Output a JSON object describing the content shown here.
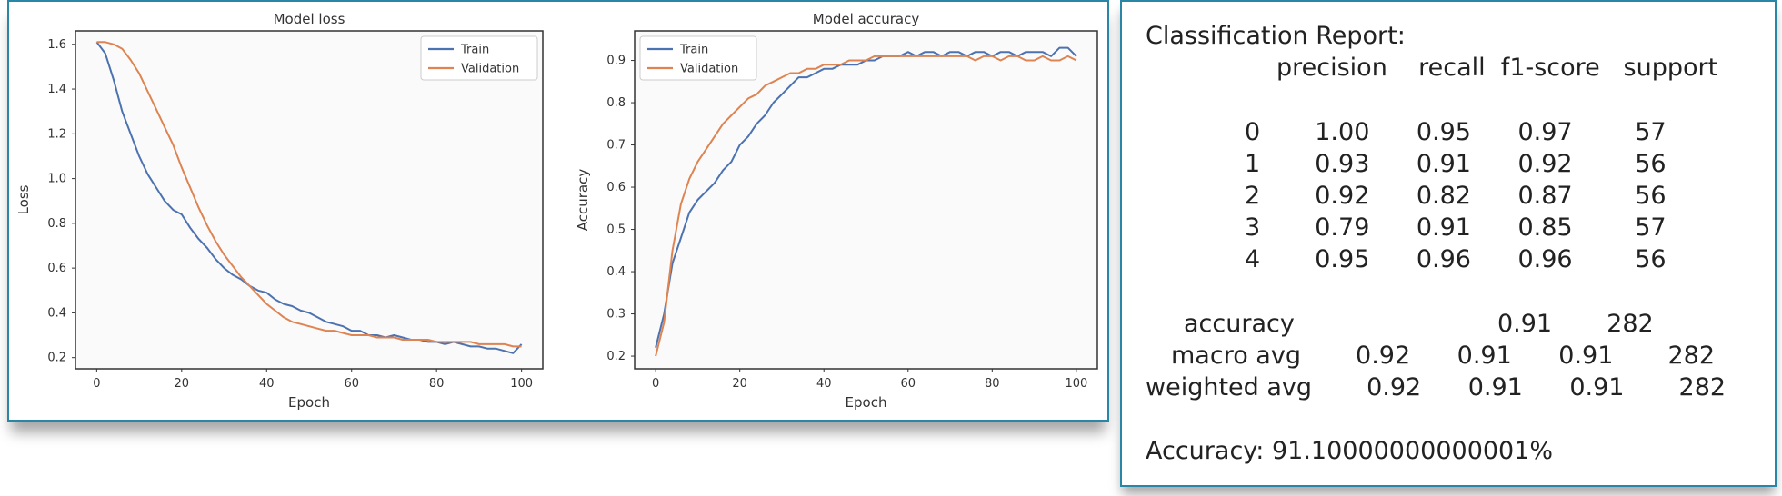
{
  "colors": {
    "train": "#4c72b0",
    "validation": "#dd8452",
    "frame": "#2a86a6",
    "plot_bg": "#fafafa"
  },
  "chart_data": [
    {
      "type": "line",
      "title": "Model loss",
      "xlabel": "Epoch",
      "ylabel": "Loss",
      "xlim": [
        -5,
        105
      ],
      "ylim": [
        0.15,
        1.66
      ],
      "xticks": [
        0,
        20,
        40,
        60,
        80,
        100
      ],
      "yticks": [
        0.2,
        0.4,
        0.6,
        0.8,
        1.0,
        1.2,
        1.4,
        1.6
      ],
      "legend_placement": "upper-right",
      "series": [
        {
          "name": "Train",
          "x": [
            0,
            2,
            4,
            6,
            8,
            10,
            12,
            14,
            16,
            18,
            20,
            22,
            24,
            26,
            28,
            30,
            32,
            34,
            36,
            38,
            40,
            42,
            44,
            46,
            48,
            50,
            52,
            54,
            56,
            58,
            60,
            62,
            64,
            66,
            68,
            70,
            72,
            74,
            76,
            78,
            80,
            82,
            84,
            86,
            88,
            90,
            92,
            94,
            96,
            98,
            100
          ],
          "values": [
            1.61,
            1.56,
            1.44,
            1.3,
            1.2,
            1.1,
            1.02,
            0.96,
            0.9,
            0.86,
            0.84,
            0.78,
            0.73,
            0.69,
            0.64,
            0.6,
            0.57,
            0.55,
            0.52,
            0.5,
            0.49,
            0.46,
            0.44,
            0.43,
            0.41,
            0.4,
            0.38,
            0.36,
            0.35,
            0.34,
            0.32,
            0.32,
            0.3,
            0.3,
            0.29,
            0.3,
            0.29,
            0.28,
            0.28,
            0.27,
            0.27,
            0.26,
            0.27,
            0.26,
            0.25,
            0.25,
            0.24,
            0.24,
            0.23,
            0.22,
            0.26
          ]
        },
        {
          "name": "Validation",
          "x": [
            0,
            2,
            4,
            6,
            8,
            10,
            12,
            14,
            16,
            18,
            20,
            22,
            24,
            26,
            28,
            30,
            32,
            34,
            36,
            38,
            40,
            42,
            44,
            46,
            48,
            50,
            52,
            54,
            56,
            58,
            60,
            62,
            64,
            66,
            68,
            70,
            72,
            74,
            76,
            78,
            80,
            82,
            84,
            86,
            88,
            90,
            92,
            94,
            96,
            98,
            100
          ],
          "values": [
            1.61,
            1.61,
            1.6,
            1.58,
            1.53,
            1.47,
            1.39,
            1.31,
            1.23,
            1.15,
            1.05,
            0.96,
            0.87,
            0.79,
            0.72,
            0.66,
            0.61,
            0.56,
            0.52,
            0.48,
            0.44,
            0.41,
            0.38,
            0.36,
            0.35,
            0.34,
            0.33,
            0.32,
            0.32,
            0.31,
            0.3,
            0.3,
            0.3,
            0.29,
            0.29,
            0.29,
            0.28,
            0.28,
            0.28,
            0.28,
            0.27,
            0.27,
            0.27,
            0.27,
            0.27,
            0.26,
            0.26,
            0.26,
            0.26,
            0.25,
            0.25
          ]
        }
      ]
    },
    {
      "type": "line",
      "title": "Model accuracy",
      "xlabel": "Epoch",
      "ylabel": "Accuracy",
      "xlim": [
        -5,
        105
      ],
      "ylim": [
        0.17,
        0.97
      ],
      "xticks": [
        0,
        20,
        40,
        60,
        80,
        100
      ],
      "yticks": [
        0.2,
        0.3,
        0.4,
        0.5,
        0.6,
        0.7,
        0.8,
        0.9
      ],
      "legend_placement": "upper-left",
      "series": [
        {
          "name": "Train",
          "x": [
            0,
            2,
            4,
            6,
            8,
            10,
            12,
            14,
            16,
            18,
            20,
            22,
            24,
            26,
            28,
            30,
            32,
            34,
            36,
            38,
            40,
            42,
            44,
            46,
            48,
            50,
            52,
            54,
            56,
            58,
            60,
            62,
            64,
            66,
            68,
            70,
            72,
            74,
            76,
            78,
            80,
            82,
            84,
            86,
            88,
            90,
            92,
            94,
            96,
            98,
            100
          ],
          "values": [
            0.22,
            0.3,
            0.42,
            0.48,
            0.54,
            0.57,
            0.59,
            0.61,
            0.64,
            0.66,
            0.7,
            0.72,
            0.75,
            0.77,
            0.8,
            0.82,
            0.84,
            0.86,
            0.86,
            0.87,
            0.88,
            0.88,
            0.89,
            0.89,
            0.89,
            0.9,
            0.9,
            0.91,
            0.91,
            0.91,
            0.92,
            0.91,
            0.92,
            0.92,
            0.91,
            0.92,
            0.92,
            0.91,
            0.92,
            0.92,
            0.91,
            0.92,
            0.92,
            0.91,
            0.92,
            0.92,
            0.92,
            0.91,
            0.93,
            0.93,
            0.91
          ]
        },
        {
          "name": "Validation",
          "x": [
            0,
            2,
            4,
            6,
            8,
            10,
            12,
            14,
            16,
            18,
            20,
            22,
            24,
            26,
            28,
            30,
            32,
            34,
            36,
            38,
            40,
            42,
            44,
            46,
            48,
            50,
            52,
            54,
            56,
            58,
            60,
            62,
            64,
            66,
            68,
            70,
            72,
            74,
            76,
            78,
            80,
            82,
            84,
            86,
            88,
            90,
            92,
            94,
            96,
            98,
            100
          ],
          "values": [
            0.2,
            0.28,
            0.45,
            0.56,
            0.62,
            0.66,
            0.69,
            0.72,
            0.75,
            0.77,
            0.79,
            0.81,
            0.82,
            0.84,
            0.85,
            0.86,
            0.87,
            0.87,
            0.88,
            0.88,
            0.89,
            0.89,
            0.89,
            0.9,
            0.9,
            0.9,
            0.91,
            0.91,
            0.91,
            0.91,
            0.91,
            0.91,
            0.91,
            0.91,
            0.91,
            0.91,
            0.91,
            0.91,
            0.9,
            0.91,
            0.91,
            0.9,
            0.91,
            0.91,
            0.9,
            0.9,
            0.91,
            0.9,
            0.9,
            0.91,
            0.9
          ]
        }
      ]
    }
  ],
  "report": {
    "heading": "Classification Report:",
    "header_row": "precision    recall  f1-score   support",
    "rows": [
      "0       1.00      0.95      0.97        57",
      "1       0.93      0.91      0.92        56",
      "2       0.92      0.82      0.87        56",
      "3       0.79      0.91      0.85        57",
      "4       0.95      0.96      0.96        56"
    ],
    "accuracy_row": "accuracy                          0.91       282",
    "macro_row": "macro avg       0.92      0.91      0.91       282",
    "weighted_row": "weighted avg       0.92      0.91      0.91       282",
    "final_accuracy": "Accuracy: 91.10000000000001%"
  }
}
